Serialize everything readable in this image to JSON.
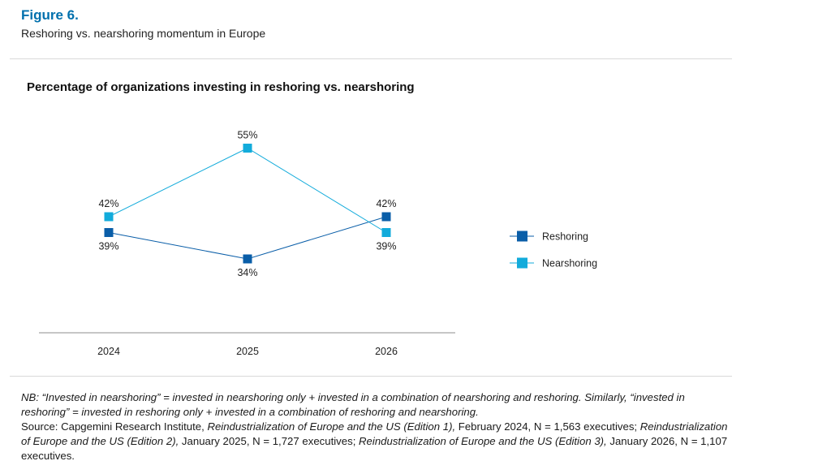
{
  "figure": {
    "label": "Figure 6.",
    "subtitle": "Reshoring vs. nearshoring momentum in Europe"
  },
  "chart_data": {
    "type": "line",
    "title": "Percentage of organizations investing in reshoring vs. nearshoring",
    "categories": [
      "2024",
      "2025",
      "2026"
    ],
    "series": [
      {
        "name": "Reshoring",
        "values": [
          39,
          34,
          42
        ],
        "labels": [
          "39%",
          "34%",
          "42%"
        ],
        "color": "#0a5ea8"
      },
      {
        "name": "Nearshoring",
        "values": [
          42,
          55,
          39
        ],
        "labels": [
          "42%",
          "55%",
          "39%"
        ],
        "color": "#12abdb"
      }
    ],
    "ylim": [
      20,
      60
    ],
    "grid": false,
    "legend": "right"
  },
  "notes": {
    "nb": "NB: “Invested in nearshoring” = invested in nearshoring only + invested in a combination of nearshoring and reshoring. Similarly, “invested in reshoring” = invested in reshoring only + invested in a combination of reshoring and nearshoring.",
    "source_prefix": "Source: Capgemini Research Institute, ",
    "source_title_1": "Reindustrialization of Europe and the US (Edition 1),",
    "source_mid_1": " February 2024, N = 1,563 executives; ",
    "source_title_2": "Reindustrialization of Europe and the US (Edition 2),",
    "source_mid_2": " January 2025, N = 1,727 executives; ",
    "source_title_3": "Reindustrialization of Europe and the US (Edition 3),",
    "source_end": " January 2026, N = 1,107 executives."
  }
}
